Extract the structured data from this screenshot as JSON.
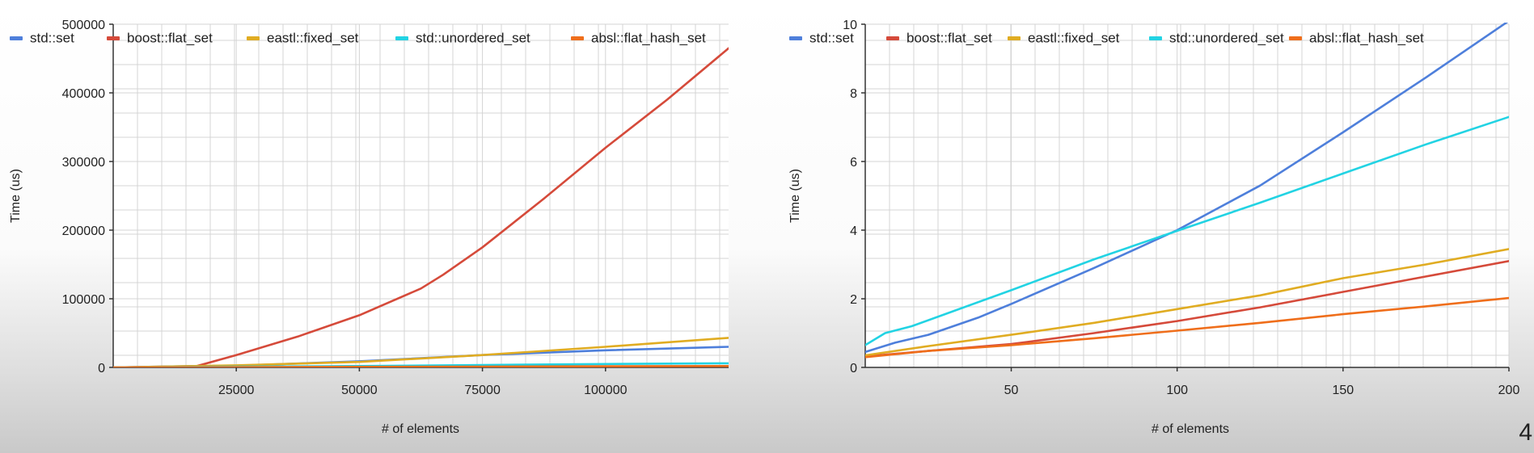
{
  "slide_number": "4",
  "chart_data": [
    {
      "type": "line",
      "xlabel": "# of elements",
      "ylabel": "Time (us)",
      "xlim": [
        0,
        125000
      ],
      "ylim": [
        0,
        500000
      ],
      "x_ticks": [
        25000,
        50000,
        75000,
        100000
      ],
      "y_ticks": [
        0,
        100000,
        200000,
        300000,
        400000,
        500000
      ],
      "grid": true,
      "legend_position": "top",
      "series": [
        {
          "name": "std::set",
          "color": "#4e7fdb",
          "points": [
            [
              0,
              0
            ],
            [
              25000,
              2500
            ],
            [
              50000,
              9000
            ],
            [
              75000,
              18000
            ],
            [
              100000,
              25000
            ],
            [
              125000,
              30000
            ]
          ]
        },
        {
          "name": "boost::flat_set",
          "color": "#d54a3a",
          "points": [
            [
              0,
              0
            ],
            [
              17000,
              2000
            ],
            [
              25000,
              18000
            ],
            [
              37500,
              45000
            ],
            [
              50000,
              76000
            ],
            [
              62500,
              115000
            ],
            [
              67000,
              135000
            ],
            [
              75000,
              175000
            ],
            [
              87500,
              246000
            ],
            [
              100000,
              320000
            ],
            [
              112500,
              390000
            ],
            [
              125000,
              465000
            ]
          ]
        },
        {
          "name": "eastl::fixed_set",
          "color": "#e0ac22",
          "points": [
            [
              0,
              0
            ],
            [
              25000,
              3000
            ],
            [
              50000,
              8000
            ],
            [
              75000,
              18000
            ],
            [
              100000,
              30000
            ],
            [
              125000,
              43000
            ]
          ]
        },
        {
          "name": "std::unordered_set",
          "color": "#22d3e3",
          "points": [
            [
              0,
              0
            ],
            [
              25000,
              1000
            ],
            [
              50000,
              2000
            ],
            [
              75000,
              3500
            ],
            [
              100000,
              5000
            ],
            [
              125000,
              6000
            ]
          ]
        },
        {
          "name": "absl::flat_hash_set",
          "color": "#ef6e1b",
          "points": [
            [
              0,
              0
            ],
            [
              25000,
              400
            ],
            [
              50000,
              800
            ],
            [
              75000,
              1200
            ],
            [
              100000,
              1600
            ],
            [
              125000,
              2000
            ]
          ]
        }
      ]
    },
    {
      "type": "line",
      "xlabel": "# of elements",
      "ylabel": "Time (us)",
      "xlim": [
        6,
        200
      ],
      "ylim": [
        0,
        10
      ],
      "x_ticks": [
        50,
        100,
        150,
        200
      ],
      "y_ticks": [
        0,
        2,
        4,
        6,
        8,
        10
      ],
      "grid": true,
      "legend_position": "top",
      "series": [
        {
          "name": "std::set",
          "color": "#4e7fdb",
          "points": [
            [
              6,
              0.45
            ],
            [
              15,
              0.72
            ],
            [
              25,
              0.95
            ],
            [
              40,
              1.45
            ],
            [
              50,
              1.85
            ],
            [
              75,
              2.9
            ],
            [
              100,
              4.0
            ],
            [
              125,
              5.3
            ],
            [
              150,
              6.85
            ],
            [
              175,
              8.45
            ],
            [
              200,
              10.1
            ]
          ]
        },
        {
          "name": "boost::flat_set",
          "color": "#d54a3a",
          "points": [
            [
              6,
              0.32
            ],
            [
              25,
              0.48
            ],
            [
              50,
              0.68
            ],
            [
              75,
              1.0
            ],
            [
              100,
              1.35
            ],
            [
              125,
              1.75
            ],
            [
              150,
              2.2
            ],
            [
              175,
              2.65
            ],
            [
              200,
              3.1
            ]
          ]
        },
        {
          "name": "eastl::fixed_set",
          "color": "#e0ac22",
          "points": [
            [
              6,
              0.35
            ],
            [
              25,
              0.62
            ],
            [
              50,
              0.95
            ],
            [
              75,
              1.3
            ],
            [
              100,
              1.7
            ],
            [
              125,
              2.1
            ],
            [
              150,
              2.6
            ],
            [
              175,
              3.0
            ],
            [
              200,
              3.45
            ]
          ]
        },
        {
          "name": "std::unordered_set",
          "color": "#22d3e3",
          "points": [
            [
              6,
              0.65
            ],
            [
              12,
              1.0
            ],
            [
              20,
              1.2
            ],
            [
              30,
              1.55
            ],
            [
              50,
              2.25
            ],
            [
              75,
              3.15
            ],
            [
              100,
              3.98
            ],
            [
              125,
              4.8
            ],
            [
              150,
              5.65
            ],
            [
              175,
              6.5
            ],
            [
              200,
              7.3
            ]
          ]
        },
        {
          "name": "absl::flat_hash_set",
          "color": "#ef6e1b",
          "points": [
            [
              6,
              0.3
            ],
            [
              25,
              0.48
            ],
            [
              50,
              0.65
            ],
            [
              75,
              0.85
            ],
            [
              100,
              1.07
            ],
            [
              125,
              1.3
            ],
            [
              150,
              1.55
            ],
            [
              175,
              1.78
            ],
            [
              200,
              2.02
            ]
          ]
        }
      ]
    }
  ]
}
